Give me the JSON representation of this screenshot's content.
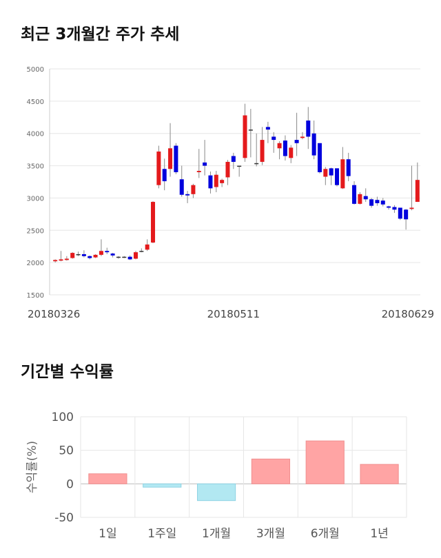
{
  "stock_section": {
    "title": "최근 3개월간 주가 추세"
  },
  "returns_section": {
    "title": "기간별 수익률"
  },
  "chart_data": [
    {
      "type": "candlestick",
      "title": "최근 3개월간 주가 추세",
      "ylim": [
        1500,
        5000
      ],
      "yticks": [
        1500,
        2000,
        2500,
        3000,
        3500,
        4000,
        4500,
        5000
      ],
      "x_tick_labels": [
        "20180326",
        "20180511",
        "20180629"
      ],
      "x_tick_index": [
        0,
        31,
        63
      ],
      "colors": {
        "up": "#e41a1c",
        "down": "#0000dd"
      },
      "candles": [
        [
          2020,
          2040,
          2000,
          2050
        ],
        [
          2030,
          2050,
          2020,
          2180
        ],
        [
          2040,
          2060,
          2030,
          2100
        ],
        [
          2070,
          2150,
          2060,
          2160
        ],
        [
          2120,
          2130,
          2100,
          2170
        ],
        [
          2130,
          2100,
          2080,
          2190
        ],
        [
          2100,
          2070,
          2050,
          2110
        ],
        [
          2080,
          2120,
          2070,
          2130
        ],
        [
          2120,
          2180,
          2100,
          2360
        ],
        [
          2180,
          2160,
          2130,
          2230
        ],
        [
          2140,
          2110,
          2080,
          2150
        ],
        [
          2090,
          2090,
          2060,
          2100
        ],
        [
          2080,
          2090,
          2070,
          2100
        ],
        [
          2090,
          2050,
          2040,
          2110
        ],
        [
          2060,
          2160,
          2050,
          2180
        ],
        [
          2170,
          2180,
          2160,
          2220
        ],
        [
          2200,
          2280,
          2180,
          2360
        ],
        [
          2310,
          2940,
          2300,
          2950
        ],
        [
          3200,
          3720,
          3150,
          3810
        ],
        [
          3450,
          3260,
          3120,
          3610
        ],
        [
          3450,
          3770,
          3330,
          4160
        ],
        [
          3810,
          3400,
          3370,
          3850
        ],
        [
          3290,
          3050,
          3020,
          3500
        ],
        [
          3060,
          3040,
          2920,
          3110
        ],
        [
          3060,
          3200,
          3000,
          3220
        ],
        [
          3400,
          3420,
          3310,
          3760
        ],
        [
          3550,
          3500,
          3350,
          3900
        ],
        [
          3350,
          3150,
          3070,
          3410
        ],
        [
          3170,
          3360,
          3090,
          3420
        ],
        [
          3230,
          3280,
          3170,
          3300
        ],
        [
          3320,
          3560,
          3200,
          3590
        ],
        [
          3650,
          3560,
          3450,
          3700
        ],
        [
          3490,
          3500,
          3330,
          3500
        ],
        [
          3620,
          4280,
          3560,
          4460
        ],
        [
          4060,
          4050,
          3630,
          4380
        ],
        [
          3530,
          3540,
          3490,
          4000
        ],
        [
          3560,
          3900,
          3510,
          4100
        ],
        [
          4100,
          4060,
          3850,
          4180
        ],
        [
          3950,
          3900,
          3700,
          4020
        ],
        [
          3770,
          3850,
          3600,
          3880
        ],
        [
          3890,
          3650,
          3580,
          3970
        ],
        [
          3620,
          3780,
          3540,
          3820
        ],
        [
          3900,
          3850,
          3650,
          4320
        ],
        [
          3930,
          3950,
          3910,
          4020
        ],
        [
          4200,
          3950,
          3760,
          4410
        ],
        [
          4000,
          3660,
          3600,
          4200
        ],
        [
          3850,
          3400,
          3380,
          3850
        ],
        [
          3330,
          3450,
          3200,
          3480
        ],
        [
          3460,
          3350,
          3200,
          3470
        ],
        [
          3460,
          3200,
          3180,
          3460
        ],
        [
          3150,
          3600,
          3140,
          3790
        ],
        [
          3600,
          3340,
          3260,
          3700
        ],
        [
          3200,
          2910,
          2900,
          3260
        ],
        [
          2910,
          3060,
          2900,
          3090
        ],
        [
          3030,
          2980,
          2940,
          3150
        ],
        [
          2980,
          2880,
          2850,
          3000
        ],
        [
          2970,
          2920,
          2880,
          3020
        ],
        [
          2960,
          2900,
          2870,
          3000
        ],
        [
          2870,
          2850,
          2820,
          2880
        ],
        [
          2860,
          2820,
          2770,
          2890
        ],
        [
          2850,
          2680,
          2660,
          2850
        ],
        [
          2820,
          2670,
          2510,
          2830
        ],
        [
          2830,
          2850,
          2810,
          3500
        ],
        [
          2940,
          3280,
          2940,
          3550
        ]
      ]
    },
    {
      "type": "bar",
      "title": "기간별 수익률",
      "ylabel": "수익률(%)",
      "ylim": [
        -50,
        100
      ],
      "yticks": [
        100,
        50,
        0,
        -50
      ],
      "categories": [
        "1일",
        "1주일",
        "1개월",
        "3개월",
        "6개월",
        "1년"
      ],
      "values": [
        15,
        -5,
        -25,
        37,
        64,
        29
      ],
      "colors": {
        "positive": "#ffa4a4",
        "negative": "#b2e8f2"
      }
    }
  ]
}
